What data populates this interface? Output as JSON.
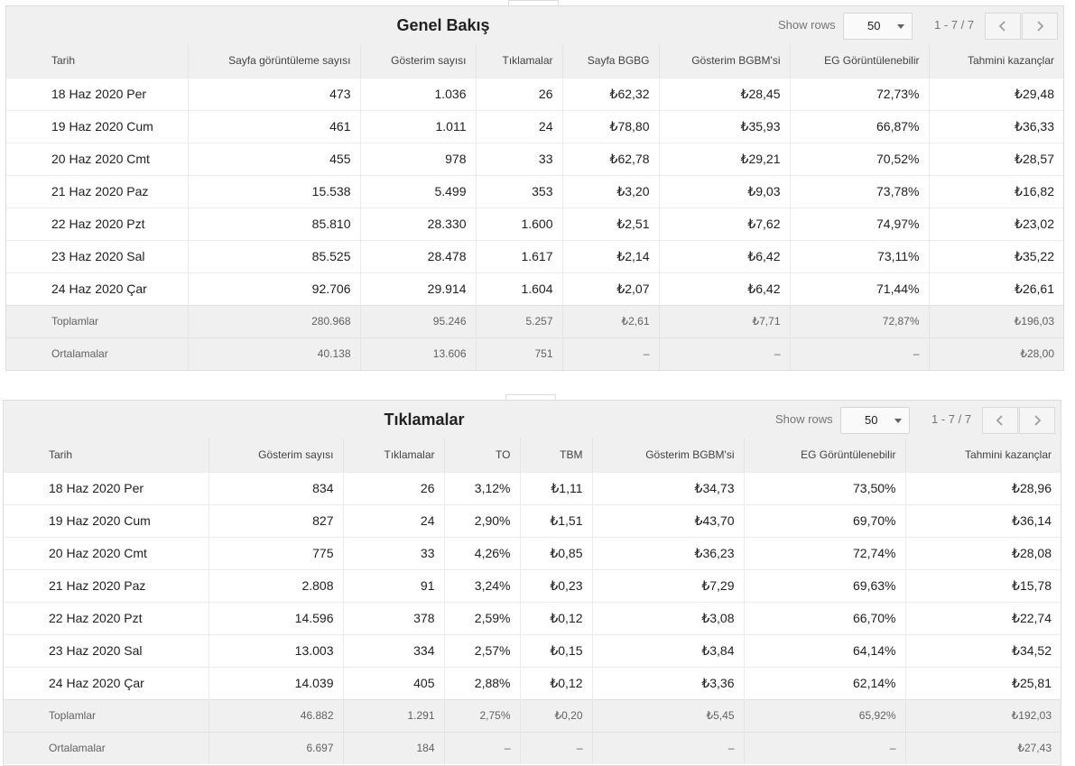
{
  "overview": {
    "title": "Genel Bakış",
    "show_rows_label": "Show rows",
    "rows_value": "50",
    "range": "1 - 7 / 7",
    "columns": [
      "Tarih",
      "Sayfa görüntüleme sayısı",
      "Gösterim sayısı",
      "Tıklamalar",
      "Sayfa BGBG",
      "Gösterim BGBM'si",
      "EG Görüntülenebilir",
      "Tahmini kazançlar"
    ],
    "rows": [
      [
        "18 Haz 2020 Per",
        "473",
        "1.036",
        "26",
        "₺62,32",
        "₺28,45",
        "72,73%",
        "₺29,48"
      ],
      [
        "19 Haz 2020 Cum",
        "461",
        "1.011",
        "24",
        "₺78,80",
        "₺35,93",
        "66,87%",
        "₺36,33"
      ],
      [
        "20 Haz 2020 Cmt",
        "455",
        "978",
        "33",
        "₺62,78",
        "₺29,21",
        "70,52%",
        "₺28,57"
      ],
      [
        "21 Haz 2020 Paz",
        "15.538",
        "5.499",
        "353",
        "₺3,20",
        "₺9,03",
        "73,78%",
        "₺16,82"
      ],
      [
        "22 Haz 2020 Pzt",
        "85.810",
        "28.330",
        "1.600",
        "₺2,51",
        "₺7,62",
        "74,97%",
        "₺23,02"
      ],
      [
        "23 Haz 2020 Sal",
        "85.525",
        "28.478",
        "1.617",
        "₺2,14",
        "₺6,42",
        "73,11%",
        "₺35,22"
      ],
      [
        "24 Haz 2020 Çar",
        "92.706",
        "29.914",
        "1.604",
        "₺2,07",
        "₺6,42",
        "71,44%",
        "₺26,61"
      ]
    ],
    "totals": [
      "Toplamlar",
      "280.968",
      "95.246",
      "5.257",
      "₺2,61",
      "₺7,71",
      "72,87%",
      "₺196,03"
    ],
    "averages": [
      "Ortalamalar",
      "40.138",
      "13.606",
      "751",
      "–",
      "–",
      "–",
      "₺28,00"
    ]
  },
  "clicks": {
    "title": "Tıklamalar",
    "show_rows_label": "Show rows",
    "rows_value": "50",
    "range": "1 - 7 / 7",
    "columns": [
      "Tarih",
      "Gösterim sayısı",
      "Tıklamalar",
      "TO",
      "TBM",
      "Gösterim BGBM'si",
      "EG Görüntülenebilir",
      "Tahmini kazançlar"
    ],
    "rows": [
      [
        "18 Haz 2020 Per",
        "834",
        "26",
        "3,12%",
        "₺1,11",
        "₺34,73",
        "73,50%",
        "₺28,96"
      ],
      [
        "19 Haz 2020 Cum",
        "827",
        "24",
        "2,90%",
        "₺1,51",
        "₺43,70",
        "69,70%",
        "₺36,14"
      ],
      [
        "20 Haz 2020 Cmt",
        "775",
        "33",
        "4,26%",
        "₺0,85",
        "₺36,23",
        "72,74%",
        "₺28,08"
      ],
      [
        "21 Haz 2020 Paz",
        "2.808",
        "91",
        "3,24%",
        "₺0,23",
        "₺7,29",
        "69,63%",
        "₺15,78"
      ],
      [
        "22 Haz 2020 Pzt",
        "14.596",
        "378",
        "2,59%",
        "₺0,12",
        "₺3,08",
        "66,70%",
        "₺22,74"
      ],
      [
        "23 Haz 2020 Sal",
        "13.003",
        "334",
        "2,57%",
        "₺0,15",
        "₺3,84",
        "64,14%",
        "₺34,52"
      ],
      [
        "24 Haz 2020 Çar",
        "14.039",
        "405",
        "2,88%",
        "₺0,12",
        "₺3,36",
        "62,14%",
        "₺25,81"
      ]
    ],
    "totals": [
      "Toplamlar",
      "46.882",
      "1.291",
      "2,75%",
      "₺0,20",
      "₺5,45",
      "65,92%",
      "₺192,03"
    ],
    "averages": [
      "Ortalamalar",
      "6.697",
      "184",
      "–",
      "–",
      "–",
      "–",
      "₺27,43"
    ]
  },
  "icons": {
    "prev": "chevron-left-icon",
    "next": "chevron-right-icon",
    "dropdown": "caret-down-icon"
  }
}
